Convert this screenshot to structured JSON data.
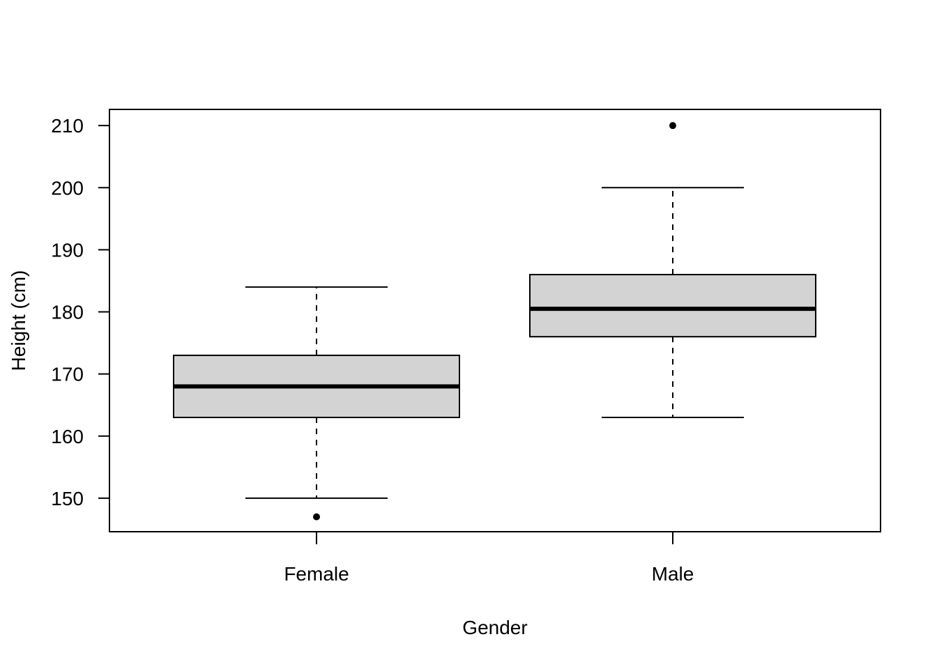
{
  "chart_data": {
    "type": "boxplot",
    "title": "",
    "xlabel": "Gender",
    "ylabel": "Height (cm)",
    "categories": [
      "Female",
      "Male"
    ],
    "boxes": [
      {
        "category": "Female",
        "whisker_low": 150,
        "q1": 163,
        "median": 168,
        "q3": 173,
        "whisker_high": 184,
        "outliers": [
          147
        ]
      },
      {
        "category": "Male",
        "whisker_low": 163,
        "q1": 176,
        "median": 180.5,
        "q3": 186,
        "whisker_high": 200,
        "outliers": [
          210
        ]
      }
    ],
    "y_ticks": [
      150,
      160,
      170,
      180,
      190,
      200,
      210
    ],
    "ylim": [
      144.6,
      212.6
    ],
    "grid": false,
    "legend": "none",
    "colors": {
      "box_fill": "#d3d3d3",
      "stroke": "#000000"
    }
  }
}
